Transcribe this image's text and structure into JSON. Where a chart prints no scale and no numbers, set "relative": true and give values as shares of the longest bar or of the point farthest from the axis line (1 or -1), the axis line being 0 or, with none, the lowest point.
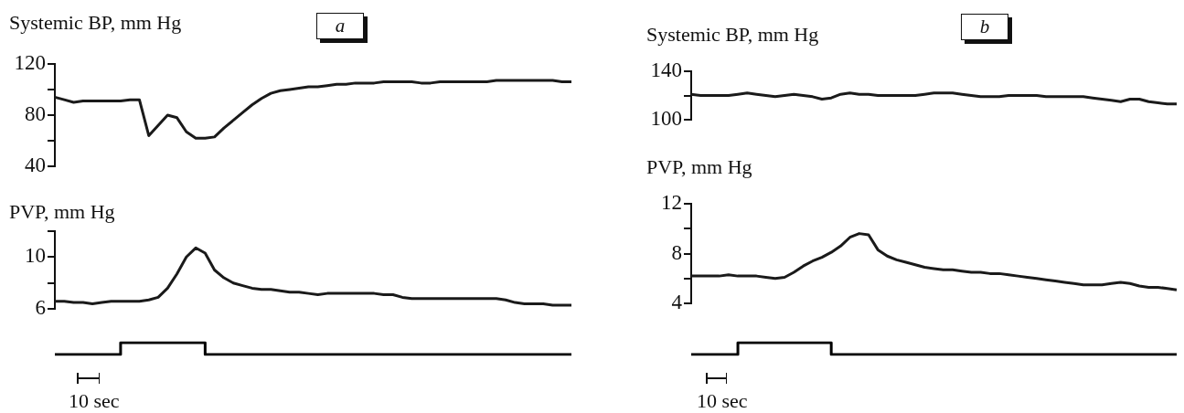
{
  "chart_data": [
    {
      "type": "line",
      "title": "a",
      "ylabel": "Systemic BP, mm Hg",
      "marker": "none",
      "line_style": "solid",
      "ylim": [
        40,
        120
      ],
      "yticks": [
        40,
        {
          "value": 60,
          "label": null
        },
        80,
        {
          "value": 100,
          "label": null
        },
        120
      ],
      "categories": [
        null,
        null,
        null,
        null,
        null,
        null,
        null,
        null,
        null,
        null,
        null,
        null,
        null,
        null,
        null,
        null,
        null,
        null,
        null,
        null,
        null,
        null,
        null,
        null,
        null,
        null,
        null,
        null,
        null,
        null,
        null,
        null,
        null,
        null,
        null,
        null,
        null,
        null,
        null,
        null,
        null,
        null,
        null,
        null,
        null,
        null,
        null,
        null,
        null,
        null,
        null,
        null,
        null,
        null,
        null,
        null
      ],
      "series": [
        {
          "color": "#1a1a1a",
          "values": [
            94,
            92,
            90,
            91,
            91,
            91,
            91,
            91,
            92,
            92,
            64,
            72,
            80,
            78,
            67,
            62,
            62,
            63,
            70,
            76,
            82,
            88,
            93,
            97,
            99,
            100,
            101,
            102,
            102,
            103,
            104,
            104,
            105,
            105,
            105,
            106,
            106,
            106,
            106,
            105,
            105,
            106,
            106,
            106,
            106,
            106,
            106,
            107,
            107,
            107,
            107,
            107,
            107,
            107,
            106,
            106
          ]
        }
      ]
    },
    {
      "type": "line",
      "ylabel": "PVP, mm Hg",
      "marker": "none",
      "line_style": "solid",
      "ylim": [
        6,
        12
      ],
      "yticks": [
        6,
        {
          "value": 8,
          "label": null
        },
        10,
        {
          "value": 12,
          "label": null
        }
      ],
      "categories": [
        null,
        null,
        null,
        null,
        null,
        null,
        null,
        null,
        null,
        null,
        null,
        null,
        null,
        null,
        null,
        null,
        null,
        null,
        null,
        null,
        null,
        null,
        null,
        null,
        null,
        null,
        null,
        null,
        null,
        null,
        null,
        null,
        null,
        null,
        null,
        null,
        null,
        null,
        null,
        null,
        null,
        null,
        null,
        null,
        null,
        null,
        null,
        null,
        null,
        null,
        null,
        null,
        null,
        null,
        null,
        null
      ],
      "series": [
        {
          "color": "#1a1a1a",
          "values": [
            6.6,
            6.6,
            6.5,
            6.5,
            6.4,
            6.5,
            6.6,
            6.6,
            6.6,
            6.6,
            6.7,
            6.9,
            7.6,
            8.7,
            10.0,
            10.7,
            10.3,
            9.0,
            8.4,
            8.0,
            7.8,
            7.6,
            7.5,
            7.5,
            7.4,
            7.3,
            7.3,
            7.2,
            7.1,
            7.2,
            7.2,
            7.2,
            7.2,
            7.2,
            7.2,
            7.1,
            7.1,
            6.9,
            6.8,
            6.8,
            6.8,
            6.8,
            6.8,
            6.8,
            6.8,
            6.8,
            6.8,
            6.8,
            6.7,
            6.5,
            6.4,
            6.4,
            6.4,
            6.3,
            6.3,
            6.3
          ]
        }
      ]
    },
    {
      "type": "step",
      "relative": true,
      "marker": "none",
      "line_style": "solid",
      "annotations": [
        "10 sec"
      ],
      "categories": [
        null,
        null,
        null,
        null,
        null,
        null,
        null,
        null,
        null,
        null,
        null,
        null,
        null,
        null,
        null,
        null,
        null,
        null,
        null,
        null,
        null,
        null,
        null,
        null,
        null,
        null,
        null,
        null,
        null,
        null,
        null,
        null,
        null,
        null,
        null,
        null,
        null,
        null,
        null,
        null,
        null,
        null,
        null,
        null,
        null,
        null,
        null,
        null,
        null,
        null,
        null,
        null,
        null,
        null,
        null,
        null
      ],
      "series": [
        {
          "color": "#000000",
          "values": [
            0,
            0,
            0,
            0,
            0,
            0,
            0,
            1,
            1,
            1,
            1,
            1,
            1,
            1,
            1,
            1,
            0,
            0,
            0,
            0,
            0,
            0,
            0,
            0,
            0,
            0,
            0,
            0,
            0,
            0,
            0,
            0,
            0,
            0,
            0,
            0,
            0,
            0,
            0,
            0,
            0,
            0,
            0,
            0,
            0,
            0,
            0,
            0,
            0,
            0,
            0,
            0,
            0,
            0,
            0,
            0
          ]
        }
      ]
    },
    {
      "type": "line",
      "title": "b",
      "ylabel": "Systemic BP, mm Hg",
      "marker": "none",
      "line_style": "solid",
      "ylim": [
        100,
        140
      ],
      "yticks": [
        100,
        {
          "value": 120,
          "label": null
        },
        140
      ],
      "categories": [
        null,
        null,
        null,
        null,
        null,
        null,
        null,
        null,
        null,
        null,
        null,
        null,
        null,
        null,
        null,
        null,
        null,
        null,
        null,
        null,
        null,
        null,
        null,
        null,
        null,
        null,
        null,
        null,
        null,
        null,
        null,
        null,
        null,
        null,
        null,
        null,
        null,
        null,
        null,
        null,
        null,
        null,
        null,
        null,
        null,
        null,
        null,
        null,
        null,
        null,
        null,
        null,
        null
      ],
      "series": [
        {
          "color": "#1a1a1a",
          "values": [
            121,
            120,
            120,
            120,
            120,
            121,
            122,
            121,
            120,
            119,
            120,
            121,
            120,
            119,
            117,
            118,
            121,
            122,
            121,
            121,
            120,
            120,
            120,
            120,
            120,
            121,
            122,
            122,
            122,
            121,
            120,
            119,
            119,
            119,
            120,
            120,
            120,
            120,
            119,
            119,
            119,
            119,
            119,
            118,
            117,
            116,
            115,
            117,
            117,
            115,
            114,
            113,
            113
          ]
        }
      ]
    },
    {
      "type": "line",
      "ylabel": "PVP, mm Hg",
      "marker": "none",
      "line_style": "solid",
      "ylim": [
        4,
        12
      ],
      "yticks": [
        4,
        {
          "value": 6,
          "label": null
        },
        8,
        {
          "value": 10,
          "label": null
        },
        12
      ],
      "categories": [
        null,
        null,
        null,
        null,
        null,
        null,
        null,
        null,
        null,
        null,
        null,
        null,
        null,
        null,
        null,
        null,
        null,
        null,
        null,
        null,
        null,
        null,
        null,
        null,
        null,
        null,
        null,
        null,
        null,
        null,
        null,
        null,
        null,
        null,
        null,
        null,
        null,
        null,
        null,
        null,
        null,
        null,
        null,
        null,
        null,
        null,
        null,
        null,
        null,
        null,
        null,
        null,
        null
      ],
      "series": [
        {
          "color": "#1a1a1a",
          "values": [
            6.2,
            6.2,
            6.2,
            6.2,
            6.3,
            6.2,
            6.2,
            6.2,
            6.1,
            6.0,
            6.1,
            6.5,
            7.0,
            7.4,
            7.7,
            8.1,
            8.6,
            9.3,
            9.6,
            9.5,
            8.3,
            7.8,
            7.5,
            7.3,
            7.1,
            6.9,
            6.8,
            6.7,
            6.7,
            6.6,
            6.5,
            6.5,
            6.4,
            6.4,
            6.3,
            6.2,
            6.1,
            6.0,
            5.9,
            5.8,
            5.7,
            5.6,
            5.5,
            5.5,
            5.5,
            5.6,
            5.7,
            5.6,
            5.4,
            5.3,
            5.3,
            5.2,
            5.1
          ]
        }
      ]
    },
    {
      "type": "step",
      "relative": true,
      "marker": "none",
      "line_style": "solid",
      "annotations": [
        "10 sec"
      ],
      "categories": [
        null,
        null,
        null,
        null,
        null,
        null,
        null,
        null,
        null,
        null,
        null,
        null,
        null,
        null,
        null,
        null,
        null,
        null,
        null,
        null,
        null,
        null,
        null,
        null,
        null,
        null,
        null,
        null,
        null,
        null,
        null,
        null,
        null,
        null,
        null,
        null,
        null,
        null,
        null,
        null,
        null,
        null,
        null,
        null,
        null,
        null,
        null,
        null,
        null,
        null,
        null,
        null,
        null
      ],
      "series": [
        {
          "color": "#000000",
          "values": [
            0,
            0,
            0,
            0,
            0,
            1,
            1,
            1,
            1,
            1,
            1,
            1,
            1,
            1,
            1,
            0,
            0,
            0,
            0,
            0,
            0,
            0,
            0,
            0,
            0,
            0,
            0,
            0,
            0,
            0,
            0,
            0,
            0,
            0,
            0,
            0,
            0,
            0,
            0,
            0,
            0,
            0,
            0,
            0,
            0,
            0,
            0,
            0,
            0,
            0,
            0,
            0,
            0
          ]
        }
      ]
    }
  ]
}
